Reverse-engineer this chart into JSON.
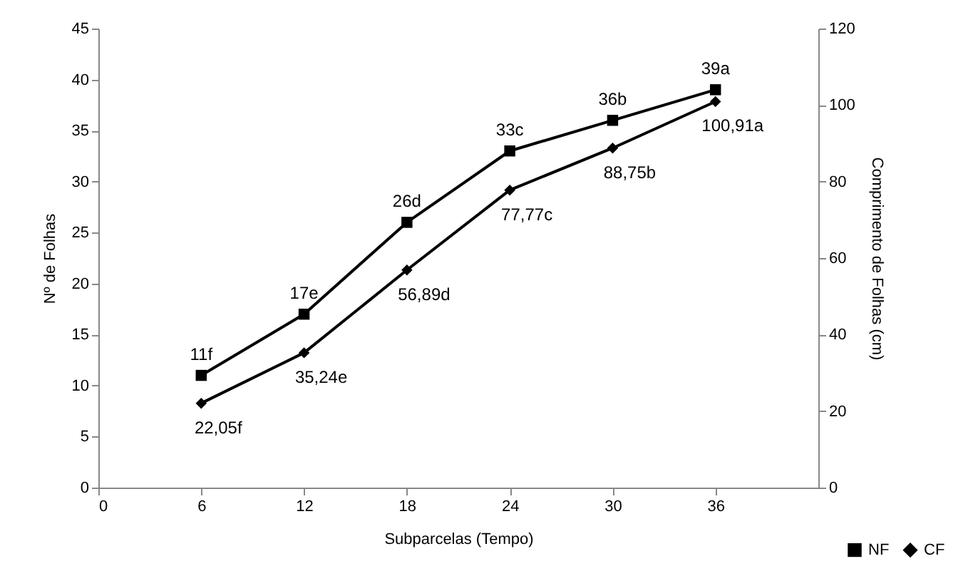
{
  "chart_data": {
    "type": "line",
    "xlabel": "Subparcelas (Tempo)",
    "ylabel": "Nº de Folhas",
    "y2label": "Comprimento de Folhas (cm)",
    "x": [
      6,
      12,
      18,
      24,
      30,
      36
    ],
    "xlim": [
      0,
      42
    ],
    "xticks": [
      0,
      6,
      12,
      18,
      24,
      30,
      36
    ],
    "ylim": [
      0,
      45
    ],
    "yticks": [
      0,
      5,
      10,
      15,
      20,
      25,
      30,
      35,
      40,
      45
    ],
    "y2lim": [
      0,
      120
    ],
    "y2ticks": [
      0,
      20,
      40,
      60,
      80,
      100,
      120
    ],
    "grid": false,
    "legend": "bottom right",
    "line_style": "solid",
    "series": [
      {
        "name": "NF",
        "color": "#000000",
        "marker": "square",
        "values": [
          11,
          17,
          26,
          33,
          36,
          39
        ],
        "value_labels": [
          "11f",
          "17e",
          "26d",
          "33c",
          "36b",
          "39a"
        ]
      },
      {
        "name": "CF",
        "color": "#000000",
        "marker": "diamond",
        "axis": "y2",
        "values": [
          22.05,
          35.24,
          56.89,
          77.77,
          88.75,
          100.91
        ],
        "value_labels": [
          "22,05f",
          "35,24e",
          "56,89d",
          "77,77c",
          "88,75b",
          "100,91a"
        ]
      }
    ]
  }
}
